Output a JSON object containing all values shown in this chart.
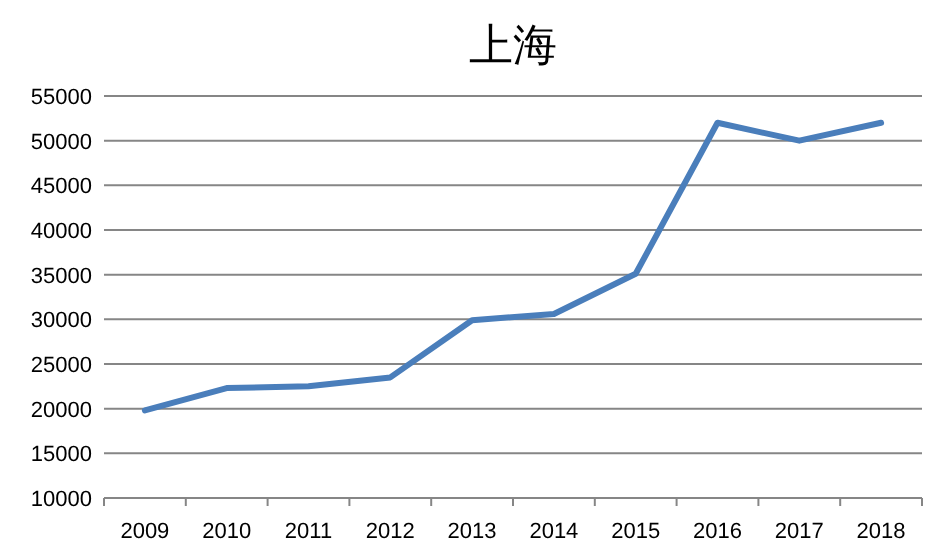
{
  "chart_data": {
    "type": "line",
    "title": "上海",
    "categories": [
      "2009",
      "2010",
      "2011",
      "2012",
      "2013",
      "2014",
      "2015",
      "2016",
      "2017",
      "2018"
    ],
    "series": [
      {
        "color": "#4a7ebb",
        "values": [
          19800,
          22300,
          22500,
          23500,
          29900,
          30600,
          35100,
          52000,
          50000,
          52000
        ]
      }
    ],
    "ylim": [
      10000,
      55000
    ],
    "yticks": [
      10000,
      15000,
      20000,
      25000,
      30000,
      35000,
      40000,
      45000,
      50000,
      55000
    ],
    "grid": "y"
  }
}
